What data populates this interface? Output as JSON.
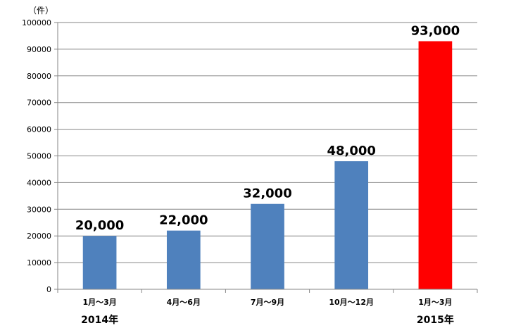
{
  "chart_data": {
    "type": "bar",
    "unit_label": "（件）",
    "categories": [
      "1月～3月",
      "4月～6月",
      "7月～9月",
      "10月～12月",
      "1月～3月"
    ],
    "values": [
      20000,
      22000,
      32000,
      48000,
      93000
    ],
    "data_labels": [
      "20,000",
      "22,000",
      "32,000",
      "48,000",
      "93,000"
    ],
    "group_labels": [
      {
        "label": "2014年",
        "from": 0,
        "to": 3
      },
      {
        "label": "2015年",
        "from": 4,
        "to": 4
      }
    ],
    "yticks": [
      "0",
      "10000",
      "20000",
      "30000",
      "40000",
      "50000",
      "60000",
      "70000",
      "80000",
      "90000",
      "100000"
    ],
    "ylim": [
      0,
      100000
    ],
    "grid": true,
    "legend": "none",
    "colors": [
      "#4f81bd",
      "#4f81bd",
      "#4f81bd",
      "#4f81bd",
      "#ff0000"
    ],
    "title": "",
    "xlabel": "",
    "ylabel": ""
  }
}
